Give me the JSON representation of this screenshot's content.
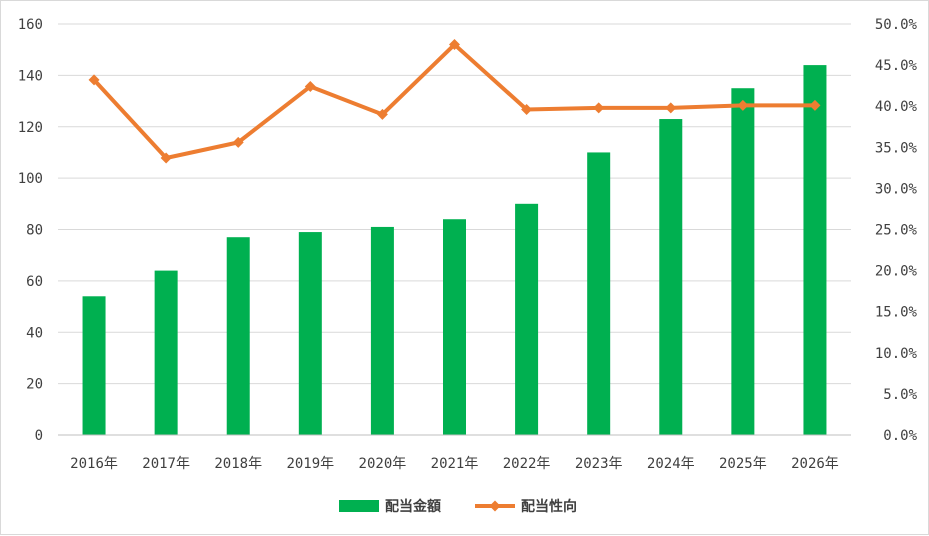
{
  "chart_data": {
    "type": "bar",
    "title": "",
    "xlabel": "",
    "ylabel": "",
    "categories": [
      "2016年",
      "2017年",
      "2018年",
      "2019年",
      "2020年",
      "2021年",
      "2022年",
      "2023年",
      "2024年",
      "2025年",
      "2026年"
    ],
    "series": [
      {
        "name": "配当金額",
        "type": "bar",
        "axis": "left",
        "color": "#00b050",
        "values": [
          54,
          64,
          77,
          79,
          81,
          84,
          90,
          110,
          123,
          135,
          144
        ]
      },
      {
        "name": "配当性向",
        "type": "line",
        "axis": "right",
        "color": "#ed7d31",
        "values": [
          43.2,
          33.7,
          35.6,
          42.4,
          39.0,
          47.5,
          39.6,
          39.8,
          39.8,
          40.1,
          40.1
        ]
      }
    ],
    "ylim": [
      0,
      160
    ],
    "y_ticks": [
      "0",
      "20",
      "40",
      "60",
      "80",
      "100",
      "120",
      "140",
      "160"
    ],
    "y2lim": [
      0,
      50
    ],
    "y2_ticks": [
      "0.0%",
      "5.0%",
      "10.0%",
      "15.0%",
      "20.0%",
      "25.0%",
      "30.0%",
      "35.0%",
      "40.0%",
      "45.0%",
      "50.0%"
    ],
    "grid": true,
    "legend_position": "bottom",
    "marker": "diamond"
  }
}
